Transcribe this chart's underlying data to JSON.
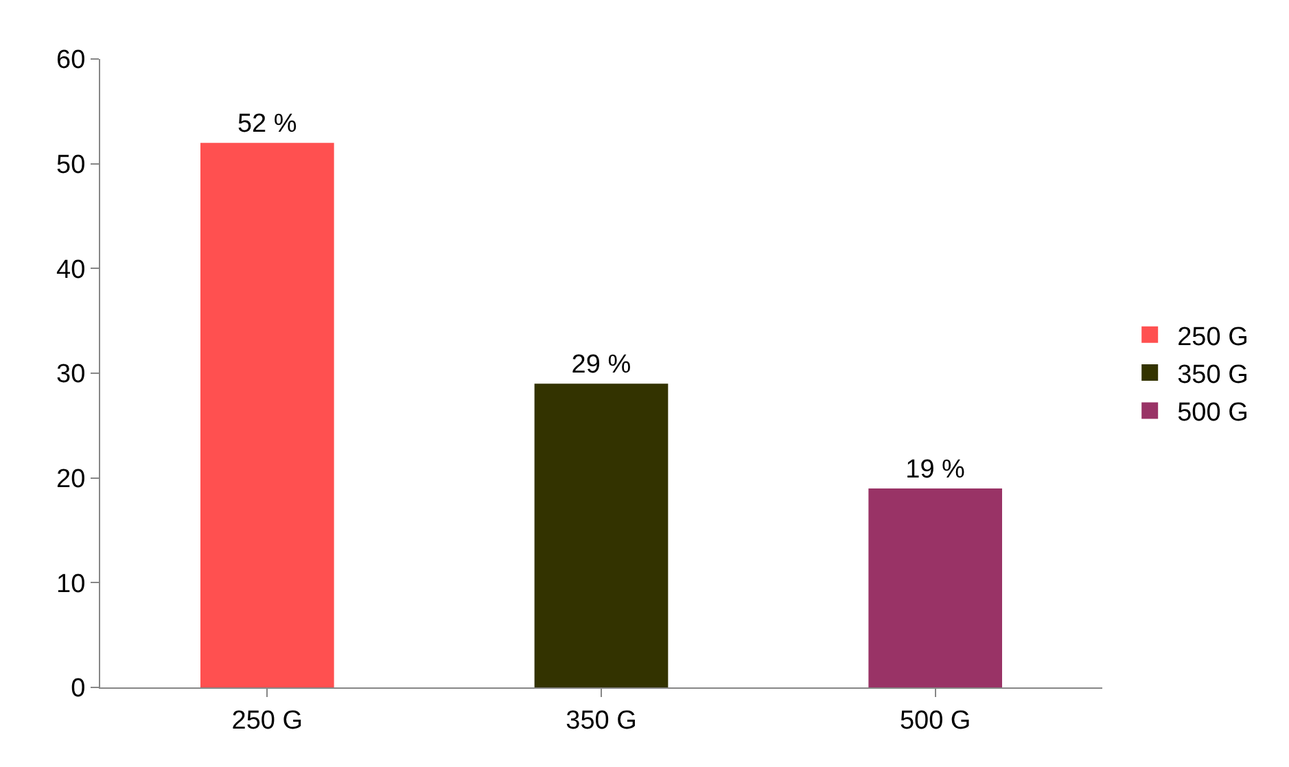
{
  "chart_data": {
    "type": "bar",
    "categories": [
      "250 G",
      "350 G",
      "500 G"
    ],
    "series": [
      {
        "name": "250 G",
        "color": "#ff5050",
        "values": [
          52,
          null,
          null
        ],
        "value_labels": [
          "52 %",
          null,
          null
        ]
      },
      {
        "name": "350 G",
        "color": "#333300",
        "values": [
          null,
          29,
          null
        ],
        "value_labels": [
          null,
          "29 %",
          null
        ]
      },
      {
        "name": "500 G",
        "color": "#993366",
        "values": [
          null,
          null,
          19
        ],
        "value_labels": [
          null,
          null,
          "19 %"
        ]
      }
    ],
    "ylim": [
      0,
      60
    ],
    "yticks": [
      0,
      10,
      20,
      30,
      40,
      50,
      60
    ],
    "legend": "right"
  }
}
